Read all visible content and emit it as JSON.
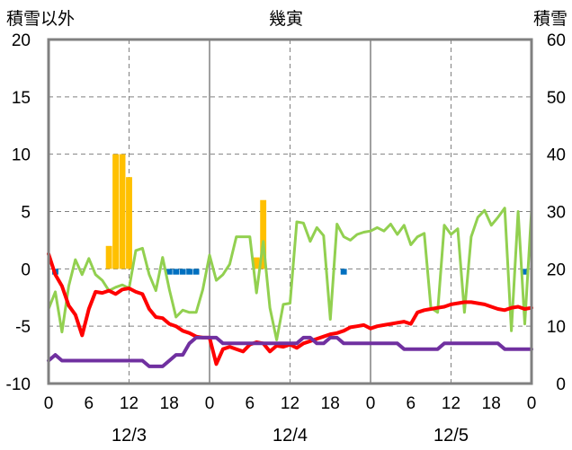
{
  "chart_data": {
    "type": "line",
    "title": "幾寅",
    "ylabel_left": "積雪以外",
    "ylabel_right": "積雪",
    "ylim_left": [
      -10,
      20
    ],
    "ylim_right": [
      0,
      60
    ],
    "yticks_left": [
      "20",
      "15",
      "10",
      "5",
      "0",
      "-5",
      "-10"
    ],
    "yticks_right": [
      "60",
      "50",
      "40",
      "30",
      "20",
      "10",
      "0"
    ],
    "xtick_labels": [
      "0",
      "6",
      "12",
      "18",
      "0",
      "6",
      "12",
      "18",
      "0",
      "6",
      "12",
      "18",
      "0"
    ],
    "date_labels": [
      "12/3",
      "12/4",
      "12/5"
    ],
    "x_hours_start": 0,
    "x_hours_end": 72,
    "grid": true,
    "colors": {
      "precip": "#FFC000",
      "negative_bar": "#0070C0",
      "temperature": "#FF0000",
      "wind": "#92D050",
      "snow_depth": "#7030A0",
      "frame": "#808080"
    },
    "precip_bars": [
      {
        "x": 9,
        "value": 2
      },
      {
        "x": 10,
        "value": 10
      },
      {
        "x": 11,
        "value": 10
      },
      {
        "x": 12,
        "value": 8
      },
      {
        "x": 31,
        "value": 1
      },
      {
        "x": 32,
        "value": 6
      }
    ],
    "negative_bars": [
      {
        "x": 1,
        "value": -0.5
      },
      {
        "x": 18,
        "value": -0.5
      },
      {
        "x": 19,
        "value": -0.5
      },
      {
        "x": 20,
        "value": -0.5
      },
      {
        "x": 21,
        "value": -0.5
      },
      {
        "x": 22,
        "value": -0.5
      },
      {
        "x": 44,
        "value": -0.5
      },
      {
        "x": 71,
        "value": -0.5
      }
    ],
    "series": [
      {
        "x": [
          0,
          1,
          2,
          3,
          4,
          5,
          6,
          7,
          8,
          9,
          10,
          11,
          12,
          13,
          14,
          15,
          16,
          17,
          18,
          19,
          20,
          21,
          22,
          23,
          24,
          25,
          26,
          27,
          28,
          29,
          30,
          31,
          32,
          33,
          34,
          35,
          36,
          37,
          38,
          39,
          40,
          41,
          42,
          43,
          44,
          45,
          46,
          47,
          48,
          49,
          50,
          51,
          52,
          53,
          54,
          55,
          56,
          57,
          58,
          59,
          60,
          61,
          62,
          63,
          64,
          65,
          66,
          67,
          68,
          69,
          70,
          71,
          72
        ],
        "values": [
          1.3,
          -0.5,
          -1.5,
          -3.2,
          -4.0,
          -5.8,
          -3.5,
          -2.0,
          -2.1,
          -1.9,
          -2.2,
          -1.8,
          -1.7,
          -2.0,
          -2.2,
          -3.5,
          -4.2,
          -4.3,
          -4.8,
          -5.0,
          -5.4,
          -5.6,
          -5.9,
          -6.0,
          -6.0,
          -8.3,
          -7.0,
          -6.8,
          -7.0,
          -7.2,
          -6.6,
          -6.4,
          -6.5,
          -7.2,
          -6.7,
          -6.8,
          -6.6,
          -6.9,
          -6.5,
          -6.3,
          -6.1,
          -5.9,
          -5.7,
          -5.6,
          -5.4,
          -5.1,
          -5.0,
          -4.9,
          -5.2,
          -5.0,
          -4.9,
          -4.8,
          -4.7,
          -4.6,
          -4.8,
          -3.8,
          -3.6,
          -3.5,
          -3.4,
          -3.3,
          -3.1,
          -3.0,
          -2.9,
          -2.9,
          -3.0,
          -3.1,
          -3.3,
          -3.5,
          -3.6,
          -3.4,
          -3.3,
          -3.5,
          -3.4
        ]
      },
      {
        "x": [
          0,
          1,
          2,
          3,
          4,
          5,
          6,
          7,
          8,
          9,
          10,
          11,
          12,
          13,
          14,
          15,
          16,
          17,
          18,
          19,
          20,
          21,
          22,
          23,
          24,
          25,
          26,
          27,
          28,
          29,
          30,
          31,
          32,
          33,
          34,
          35,
          36,
          37,
          38,
          39,
          40,
          41,
          42,
          43,
          44,
          45,
          46,
          47,
          48,
          49,
          50,
          51,
          52,
          53,
          54,
          55,
          56,
          57,
          58,
          59,
          60,
          61,
          62,
          63,
          64,
          65,
          66,
          67,
          68,
          69,
          70,
          71,
          72
        ],
        "values": [
          -3.5,
          -2.0,
          -5.5,
          -1.5,
          0.8,
          -0.5,
          0.9,
          -0.5,
          -1.0,
          -1.9,
          -1.6,
          -1.4,
          -1.7,
          1.6,
          1.8,
          -0.5,
          -1.9,
          1.0,
          -1.8,
          -4.2,
          -3.6,
          -3.8,
          -3.8,
          -1.8,
          1.2,
          -1.0,
          -0.5,
          0.4,
          2.8,
          2.8,
          2.8,
          -2.1,
          2.4,
          -3.4,
          -6.2,
          -3.1,
          -3.0,
          4.1,
          4.0,
          2.4,
          3.6,
          2.9,
          -4.4,
          3.9,
          2.8,
          2.5,
          3.0,
          3.2,
          3.3,
          3.6,
          3.3,
          3.9,
          3.0,
          3.8,
          2.1,
          2.8,
          3.1,
          -3.4,
          -3.8,
          3.8,
          3.0,
          3.5,
          -3.8,
          2.8,
          4.5,
          5.1,
          3.8,
          4.5,
          5.3,
          -5.4,
          5.0,
          -4.8,
          5.1
        ]
      },
      {
        "x": [
          0,
          1,
          2,
          3,
          4,
          5,
          6,
          7,
          8,
          9,
          10,
          11,
          12,
          13,
          14,
          15,
          16,
          17,
          18,
          19,
          20,
          21,
          22,
          23,
          24,
          25,
          26,
          27,
          28,
          29,
          30,
          31,
          32,
          33,
          34,
          35,
          36,
          37,
          38,
          39,
          40,
          41,
          42,
          43,
          44,
          45,
          46,
          47,
          48,
          49,
          50,
          51,
          52,
          53,
          54,
          55,
          56,
          57,
          58,
          59,
          60,
          61,
          62,
          63,
          64,
          65,
          66,
          67,
          68,
          69,
          70,
          71,
          72
        ],
        "values": [
          4,
          5,
          4,
          4,
          4,
          4,
          4,
          4,
          4,
          4,
          4,
          4,
          4,
          4,
          4,
          3,
          3,
          3,
          4,
          5,
          5,
          7,
          8,
          8,
          8,
          8,
          7,
          7,
          7,
          7,
          7,
          7,
          7,
          7,
          7,
          7,
          7,
          7,
          8,
          8,
          7,
          7,
          8,
          8,
          7,
          7,
          7,
          7,
          7,
          7,
          7,
          7,
          7,
          6,
          6,
          6,
          6,
          6,
          6,
          7,
          7,
          7,
          7,
          7,
          7,
          7,
          7,
          7,
          6,
          6,
          6,
          6,
          6
        ]
      }
    ]
  }
}
